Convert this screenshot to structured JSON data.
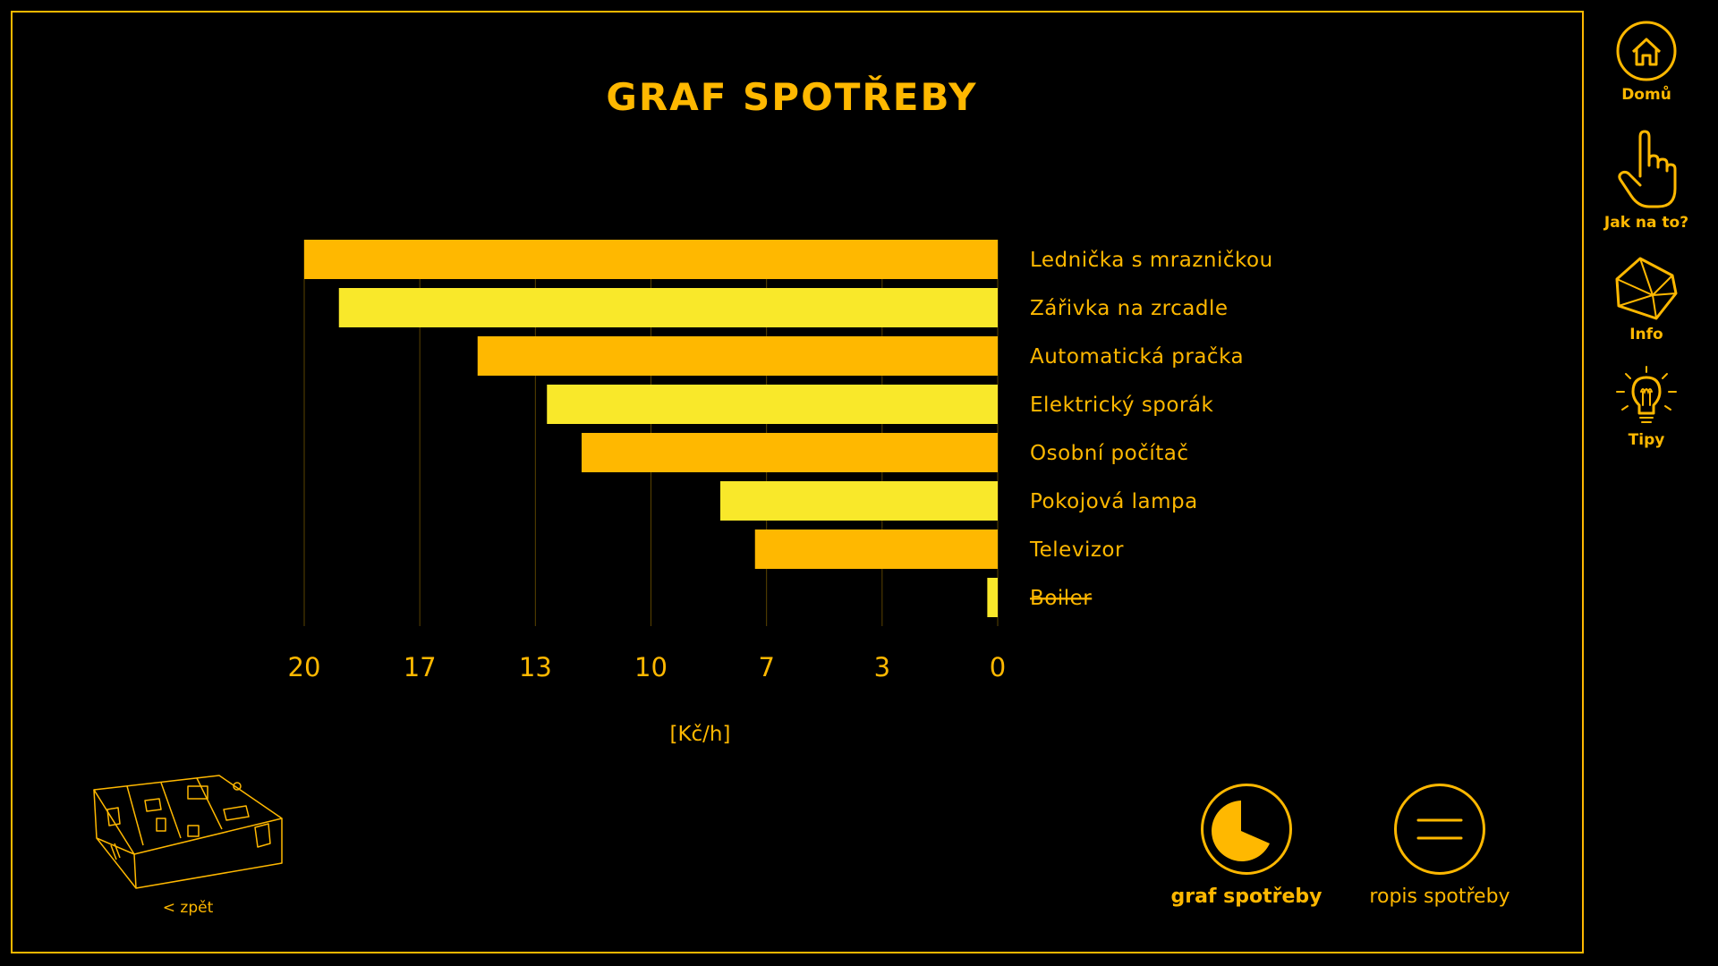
{
  "page": {
    "title": "GRAF SPOTŘEBY"
  },
  "sidebar": {
    "items": [
      {
        "label": "Domů",
        "icon": "home-icon"
      },
      {
        "label": "Jak na to?",
        "icon": "hand-pointer-icon"
      },
      {
        "label": "Info",
        "icon": "polyhedron-icon"
      },
      {
        "label": "Tipy",
        "icon": "lightbulb-icon"
      }
    ]
  },
  "actions": {
    "graph_label": "graf spotřeby",
    "list_label": "ropis spotřeby"
  },
  "back": {
    "label": "< zpět"
  },
  "colors": {
    "accent": "#ffb800",
    "bar_orange": "#ffb800",
    "bar_yellow": "#f9e82a",
    "background": "#000000",
    "grid": "#5a4300"
  },
  "chart_data": {
    "type": "bar",
    "orientation": "horizontal",
    "x_direction": "reversed",
    "categories": [
      "Lednička s mrazničkou",
      "Zářivka na zrcadle",
      "Automatická pračka",
      "Elektrický sporák",
      "Osobní počítač",
      "Pokojová lampa",
      "Televizor",
      "Boiler"
    ],
    "values": [
      20,
      19,
      15,
      13,
      12,
      8,
      7,
      0.3
    ],
    "struck_categories": [
      "Boiler"
    ],
    "xticks": [
      "20",
      "17",
      "13",
      "10",
      "7",
      "3",
      "0"
    ],
    "xlabel": "[Kč/h]",
    "xlim": [
      0,
      20
    ],
    "grid": true
  }
}
